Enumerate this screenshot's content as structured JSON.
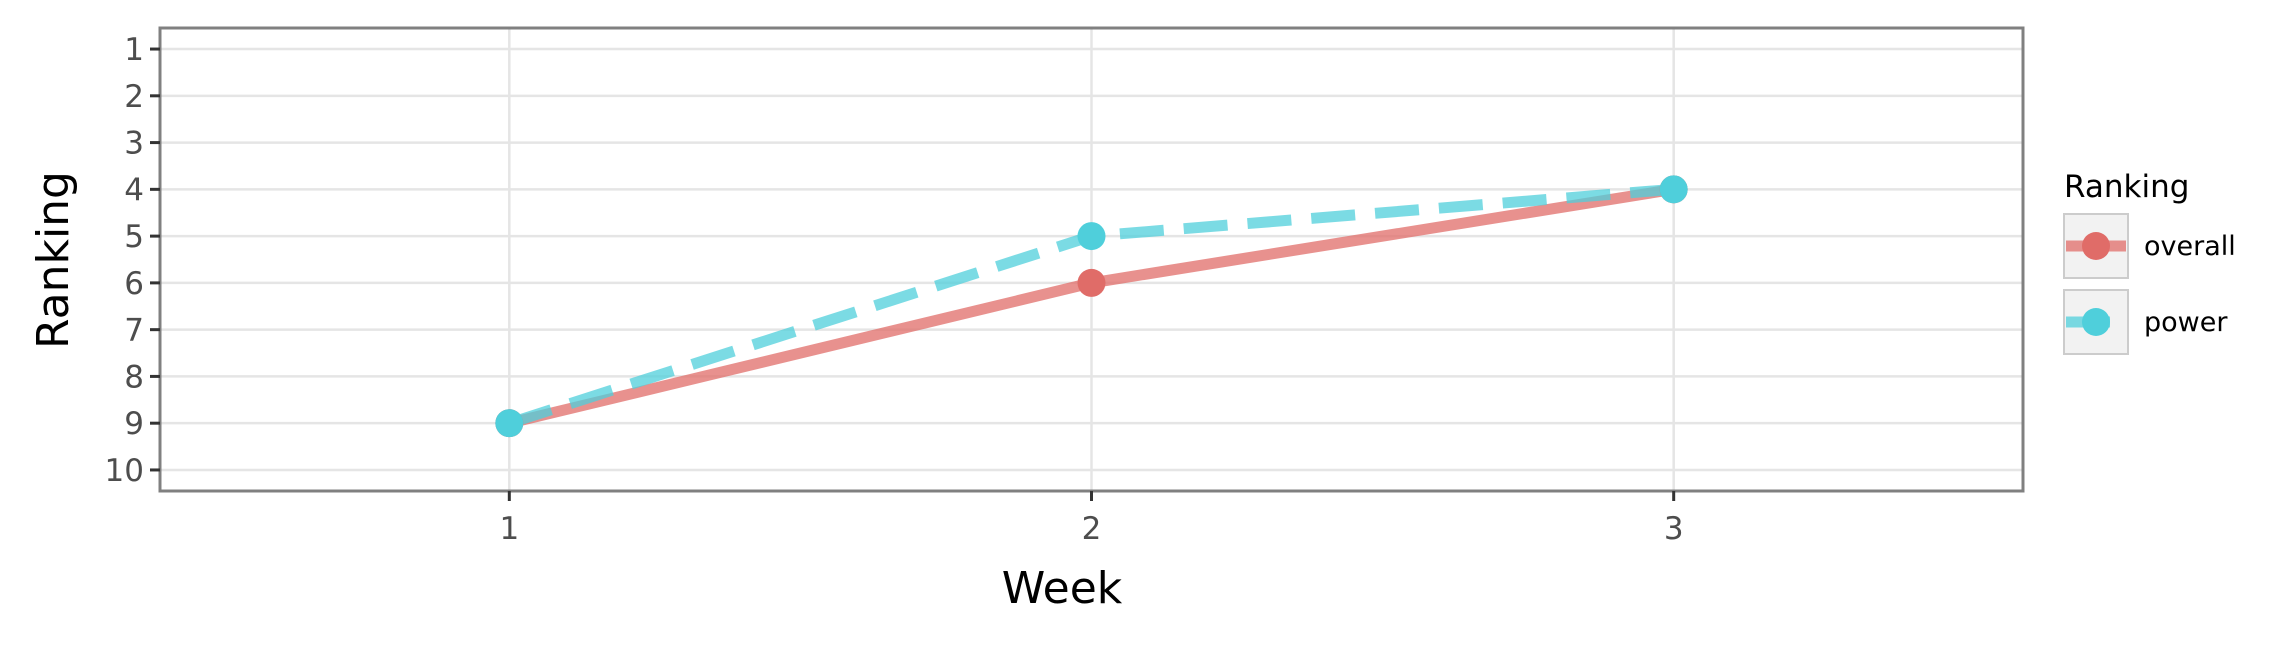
{
  "chart_data": {
    "type": "line",
    "title": "",
    "xlabel": "Week",
    "ylabel": "Ranking",
    "x": [
      1,
      2,
      3
    ],
    "xlim": [
      0.4,
      3.6
    ],
    "ylim": [
      10.45,
      0.55
    ],
    "y_reversed": true,
    "x_ticks": [
      "1",
      "2",
      "3"
    ],
    "y_ticks": [
      "1",
      "2",
      "3",
      "4",
      "5",
      "6",
      "7",
      "8",
      "9",
      "10"
    ],
    "grid": true,
    "legend_position": "right",
    "legend_title": "Ranking",
    "series": [
      {
        "name": "overall",
        "values": [
          9,
          6,
          4
        ],
        "color": "#E06C68",
        "line_style": "solid"
      },
      {
        "name": "power",
        "values": [
          9,
          5,
          4
        ],
        "color": "#4FCFDB",
        "line_style": "dashed"
      }
    ]
  },
  "colors": {
    "grid": "#e5e5e5",
    "panel_border": "#808080",
    "tick_text": "#4d4d4d",
    "legend_key_bg": "#f2f2f2",
    "legend_key_border": "#cccccc"
  }
}
